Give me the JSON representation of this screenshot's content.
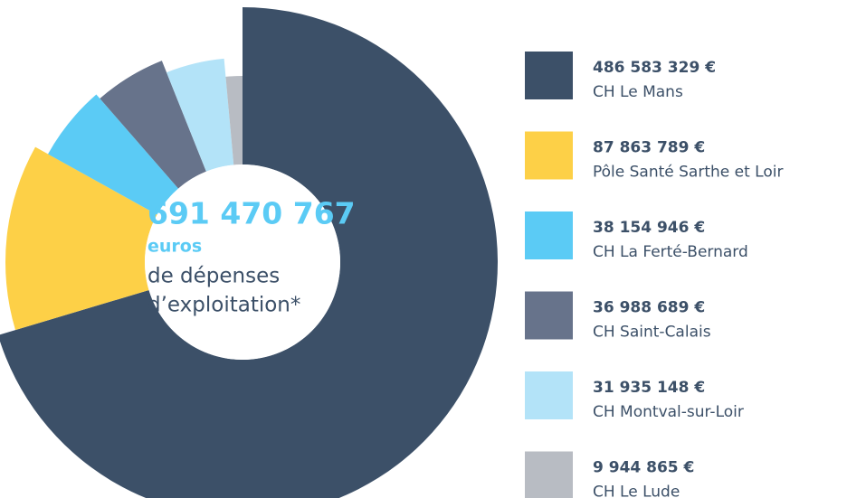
{
  "chart_data": {
    "type": "donut",
    "categories": [
      "CH Le Mans",
      "Pôle Santé Sarthe et Loir",
      "CH La Ferté-Bernard",
      "CH Saint-Calais",
      "CH Montval-sur-Loir",
      "CH Le Lude"
    ],
    "values": [
      486583329,
      87863789,
      38154946,
      36988689,
      31935148,
      9944865
    ],
    "value_labels": [
      "486 583 329 €",
      "87 863 789 €",
      "38 154 946 €",
      "36 988 689 €",
      "31 935 148 €",
      "9 944 865 €"
    ],
    "colors": [
      "#3c5068",
      "#fdd047",
      "#5bcbf5",
      "#67738b",
      "#b3e3f8",
      "#b8bcc3"
    ],
    "center_total": "691 470 767",
    "center_unit": "euros",
    "center_line1": "de dépenses",
    "center_line2": "d’exploitation*"
  }
}
